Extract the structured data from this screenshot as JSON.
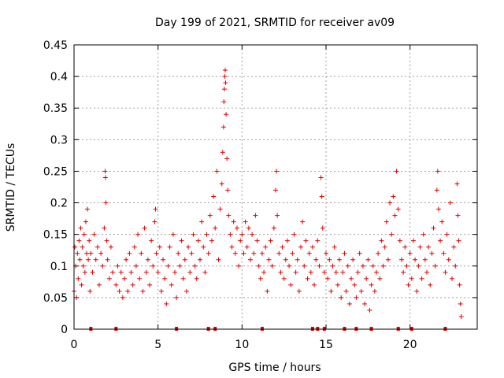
{
  "chart_data": {
    "type": "scatter",
    "title": "Day 199 of 2021, SRMTID for receiver av09",
    "xlabel": "GPS time / hours",
    "ylabel": "SRMTID / TECUs",
    "xlim": [
      0,
      24
    ],
    "ylim": [
      0,
      0.45
    ],
    "xticks": [
      0,
      5,
      10,
      15,
      20
    ],
    "xtick_labels": [
      "0",
      "5",
      "10",
      "15",
      "20"
    ],
    "yticks": [
      0,
      0.05,
      0.1,
      0.15,
      0.2,
      0.25,
      0.3,
      0.35,
      0.4,
      0.45
    ],
    "ytick_labels": [
      "0",
      "0.05",
      "0.1",
      "0.15",
      "0.2",
      "0.25",
      "0.3",
      "0.35",
      "0.4",
      "0.45"
    ],
    "grid": true,
    "marker": "+",
    "color": "#e00000",
    "series": [
      {
        "name": "SRMTID",
        "points": [
          [
            0.0,
            0.06
          ],
          [
            0.05,
            0.13
          ],
          [
            0.1,
            0.1
          ],
          [
            0.15,
            0.05
          ],
          [
            0.2,
            0.12
          ],
          [
            0.25,
            0.08
          ],
          [
            0.3,
            0.14
          ],
          [
            0.35,
            0.11
          ],
          [
            0.4,
            0.16
          ],
          [
            0.45,
            0.07
          ],
          [
            0.5,
            0.13
          ],
          [
            0.55,
            0.1
          ],
          [
            0.6,
            0.15
          ],
          [
            0.65,
            0.09
          ],
          [
            0.7,
            0.17
          ],
          [
            0.75,
            0.12
          ],
          [
            0.8,
            0.19
          ],
          [
            0.85,
            0.11
          ],
          [
            0.9,
            0.14
          ],
          [
            0.95,
            0.06
          ],
          [
            1.0,
            0.12
          ],
          [
            1.1,
            0.09
          ],
          [
            1.2,
            0.15
          ],
          [
            1.3,
            0.11
          ],
          [
            1.4,
            0.13
          ],
          [
            1.5,
            0.07
          ],
          [
            1.6,
            0.12
          ],
          [
            1.7,
            0.1
          ],
          [
            1.8,
            0.16
          ],
          [
            1.85,
            0.25
          ],
          [
            1.87,
            0.24
          ],
          [
            1.9,
            0.2
          ],
          [
            1.95,
            0.14
          ],
          [
            2.0,
            0.11
          ],
          [
            2.1,
            0.08
          ],
          [
            2.2,
            0.13
          ],
          [
            2.3,
            0.09
          ],
          [
            2.5,
            0.07
          ],
          [
            2.6,
            0.1
          ],
          [
            2.7,
            0.06
          ],
          [
            2.8,
            0.09
          ],
          [
            2.9,
            0.05
          ],
          [
            3.0,
            0.08
          ],
          [
            3.1,
            0.11
          ],
          [
            3.2,
            0.06
          ],
          [
            3.3,
            0.12
          ],
          [
            3.4,
            0.09
          ],
          [
            3.5,
            0.07
          ],
          [
            3.6,
            0.13
          ],
          [
            3.7,
            0.1
          ],
          [
            3.8,
            0.15
          ],
          [
            3.9,
            0.08
          ],
          [
            4.0,
            0.12
          ],
          [
            4.1,
            0.06
          ],
          [
            4.2,
            0.16
          ],
          [
            4.3,
            0.09
          ],
          [
            4.4,
            0.11
          ],
          [
            4.5,
            0.07
          ],
          [
            4.6,
            0.14
          ],
          [
            4.7,
            0.1
          ],
          [
            4.8,
            0.17
          ],
          [
            4.85,
            0.19
          ],
          [
            4.9,
            0.12
          ],
          [
            5.0,
            0.09
          ],
          [
            5.1,
            0.13
          ],
          [
            5.2,
            0.06
          ],
          [
            5.3,
            0.11
          ],
          [
            5.4,
            0.08
          ],
          [
            5.5,
            0.04
          ],
          [
            5.6,
            0.1
          ],
          [
            5.7,
            0.13
          ],
          [
            5.8,
            0.07
          ],
          [
            5.9,
            0.15
          ],
          [
            6.0,
            0.09
          ],
          [
            6.1,
            0.05
          ],
          [
            6.2,
            0.12
          ],
          [
            6.3,
            0.1
          ],
          [
            6.4,
            0.14
          ],
          [
            6.5,
            0.08
          ],
          [
            6.6,
            0.11
          ],
          [
            6.7,
            0.06
          ],
          [
            6.8,
            0.13
          ],
          [
            6.9,
            0.09
          ],
          [
            7.0,
            0.12
          ],
          [
            7.1,
            0.15
          ],
          [
            7.2,
            0.1
          ],
          [
            7.3,
            0.08
          ],
          [
            7.4,
            0.14
          ],
          [
            7.5,
            0.11
          ],
          [
            7.6,
            0.17
          ],
          [
            7.7,
            0.13
          ],
          [
            7.8,
            0.09
          ],
          [
            7.9,
            0.15
          ],
          [
            8.0,
            0.12
          ],
          [
            8.1,
            0.18
          ],
          [
            8.2,
            0.14
          ],
          [
            8.3,
            0.21
          ],
          [
            8.4,
            0.16
          ],
          [
            8.5,
            0.25
          ],
          [
            8.6,
            0.11
          ],
          [
            8.7,
            0.19
          ],
          [
            8.8,
            0.23
          ],
          [
            8.85,
            0.28
          ],
          [
            8.9,
            0.32
          ],
          [
            8.92,
            0.36
          ],
          [
            8.95,
            0.38
          ],
          [
            8.97,
            0.4
          ],
          [
            9.0,
            0.41
          ],
          [
            9.02,
            0.39
          ],
          [
            9.05,
            0.34
          ],
          [
            9.1,
            0.27
          ],
          [
            9.15,
            0.22
          ],
          [
            9.2,
            0.18
          ],
          [
            9.3,
            0.15
          ],
          [
            9.4,
            0.13
          ],
          [
            9.5,
            0.17
          ],
          [
            9.6,
            0.12
          ],
          [
            9.7,
            0.16
          ],
          [
            9.8,
            0.1
          ],
          [
            9.9,
            0.14
          ],
          [
            10.0,
            0.15
          ],
          [
            10.1,
            0.12
          ],
          [
            10.2,
            0.17
          ],
          [
            10.3,
            0.13
          ],
          [
            10.4,
            0.16
          ],
          [
            10.5,
            0.11
          ],
          [
            10.6,
            0.15
          ],
          [
            10.7,
            0.12
          ],
          [
            10.8,
            0.18
          ],
          [
            10.9,
            0.14
          ],
          [
            11.0,
            0.1
          ],
          [
            11.1,
            0.08
          ],
          [
            11.2,
            0.12
          ],
          [
            11.3,
            0.09
          ],
          [
            11.4,
            0.13
          ],
          [
            11.5,
            0.06
          ],
          [
            11.6,
            0.11
          ],
          [
            11.7,
            0.14
          ],
          [
            11.8,
            0.1
          ],
          [
            11.9,
            0.16
          ],
          [
            12.0,
            0.22
          ],
          [
            12.05,
            0.25
          ],
          [
            12.1,
            0.18
          ],
          [
            12.2,
            0.12
          ],
          [
            12.3,
            0.09
          ],
          [
            12.4,
            0.13
          ],
          [
            12.5,
            0.08
          ],
          [
            12.6,
            0.11
          ],
          [
            12.7,
            0.14
          ],
          [
            12.8,
            0.1
          ],
          [
            12.9,
            0.07
          ],
          [
            13.0,
            0.12
          ],
          [
            13.1,
            0.15
          ],
          [
            13.2,
            0.09
          ],
          [
            13.3,
            0.11
          ],
          [
            13.4,
            0.06
          ],
          [
            13.5,
            0.13
          ],
          [
            13.6,
            0.17
          ],
          [
            13.7,
            0.1
          ],
          [
            13.8,
            0.14
          ],
          [
            13.9,
            0.08
          ],
          [
            14.0,
            0.12
          ],
          [
            14.1,
            0.09
          ],
          [
            14.2,
            0.13
          ],
          [
            14.3,
            0.07
          ],
          [
            14.4,
            0.11
          ],
          [
            14.5,
            0.14
          ],
          [
            14.6,
            0.1
          ],
          [
            14.7,
            0.24
          ],
          [
            14.75,
            0.21
          ],
          [
            14.8,
            0.16
          ],
          [
            14.9,
            0.09
          ],
          [
            15.0,
            0.12
          ],
          [
            15.1,
            0.08
          ],
          [
            15.2,
            0.11
          ],
          [
            15.3,
            0.06
          ],
          [
            15.4,
            0.1
          ],
          [
            15.5,
            0.13
          ],
          [
            15.6,
            0.09
          ],
          [
            15.7,
            0.07
          ],
          [
            15.8,
            0.11
          ],
          [
            15.9,
            0.05
          ],
          [
            16.0,
            0.09
          ],
          [
            16.1,
            0.12
          ],
          [
            16.2,
            0.06
          ],
          [
            16.3,
            0.1
          ],
          [
            16.4,
            0.04
          ],
          [
            16.5,
            0.08
          ],
          [
            16.6,
            0.11
          ],
          [
            16.7,
            0.07
          ],
          [
            16.8,
            0.05
          ],
          [
            16.9,
            0.09
          ],
          [
            17.0,
            0.12
          ],
          [
            17.1,
            0.06
          ],
          [
            17.2,
            0.1
          ],
          [
            17.3,
            0.04
          ],
          [
            17.4,
            0.08
          ],
          [
            17.5,
            0.11
          ],
          [
            17.6,
            0.03
          ],
          [
            17.7,
            0.07
          ],
          [
            17.8,
            0.1
          ],
          [
            17.9,
            0.06
          ],
          [
            18.0,
            0.09
          ],
          [
            18.1,
            0.12
          ],
          [
            18.2,
            0.08
          ],
          [
            18.3,
            0.14
          ],
          [
            18.4,
            0.1
          ],
          [
            18.5,
            0.13
          ],
          [
            18.6,
            0.17
          ],
          [
            18.7,
            0.11
          ],
          [
            18.8,
            0.2
          ],
          [
            18.9,
            0.15
          ],
          [
            19.0,
            0.21
          ],
          [
            19.1,
            0.18
          ],
          [
            19.2,
            0.25
          ],
          [
            19.3,
            0.19
          ],
          [
            19.4,
            0.14
          ],
          [
            19.5,
            0.11
          ],
          [
            19.6,
            0.09
          ],
          [
            19.7,
            0.13
          ],
          [
            19.8,
            0.1
          ],
          [
            19.9,
            0.07
          ],
          [
            20.0,
            0.12
          ],
          [
            20.1,
            0.08
          ],
          [
            20.2,
            0.14
          ],
          [
            20.3,
            0.11
          ],
          [
            20.4,
            0.06
          ],
          [
            20.5,
            0.1
          ],
          [
            20.6,
            0.13
          ],
          [
            20.7,
            0.08
          ],
          [
            20.8,
            0.15
          ],
          [
            20.9,
            0.11
          ],
          [
            21.0,
            0.09
          ],
          [
            21.1,
            0.13
          ],
          [
            21.2,
            0.07
          ],
          [
            21.3,
            0.12
          ],
          [
            21.4,
            0.16
          ],
          [
            21.5,
            0.1
          ],
          [
            21.6,
            0.22
          ],
          [
            21.65,
            0.25
          ],
          [
            21.7,
            0.19
          ],
          [
            21.8,
            0.14
          ],
          [
            21.9,
            0.17
          ],
          [
            22.0,
            0.12
          ],
          [
            22.1,
            0.09
          ],
          [
            22.2,
            0.15
          ],
          [
            22.3,
            0.11
          ],
          [
            22.4,
            0.2
          ],
          [
            22.5,
            0.08
          ],
          [
            22.6,
            0.13
          ],
          [
            22.7,
            0.1
          ],
          [
            22.8,
            0.23
          ],
          [
            22.85,
            0.18
          ],
          [
            22.9,
            0.14
          ],
          [
            22.95,
            0.07
          ],
          [
            23.0,
            0.04
          ],
          [
            23.05,
            0.02
          ]
        ]
      }
    ],
    "gap_markers_x": [
      1.0,
      2.5,
      6.1,
      8.0,
      8.4,
      11.2,
      14.2,
      14.5,
      14.9,
      16.1,
      16.8,
      17.7,
      19.3,
      20.1,
      22.1
    ]
  }
}
